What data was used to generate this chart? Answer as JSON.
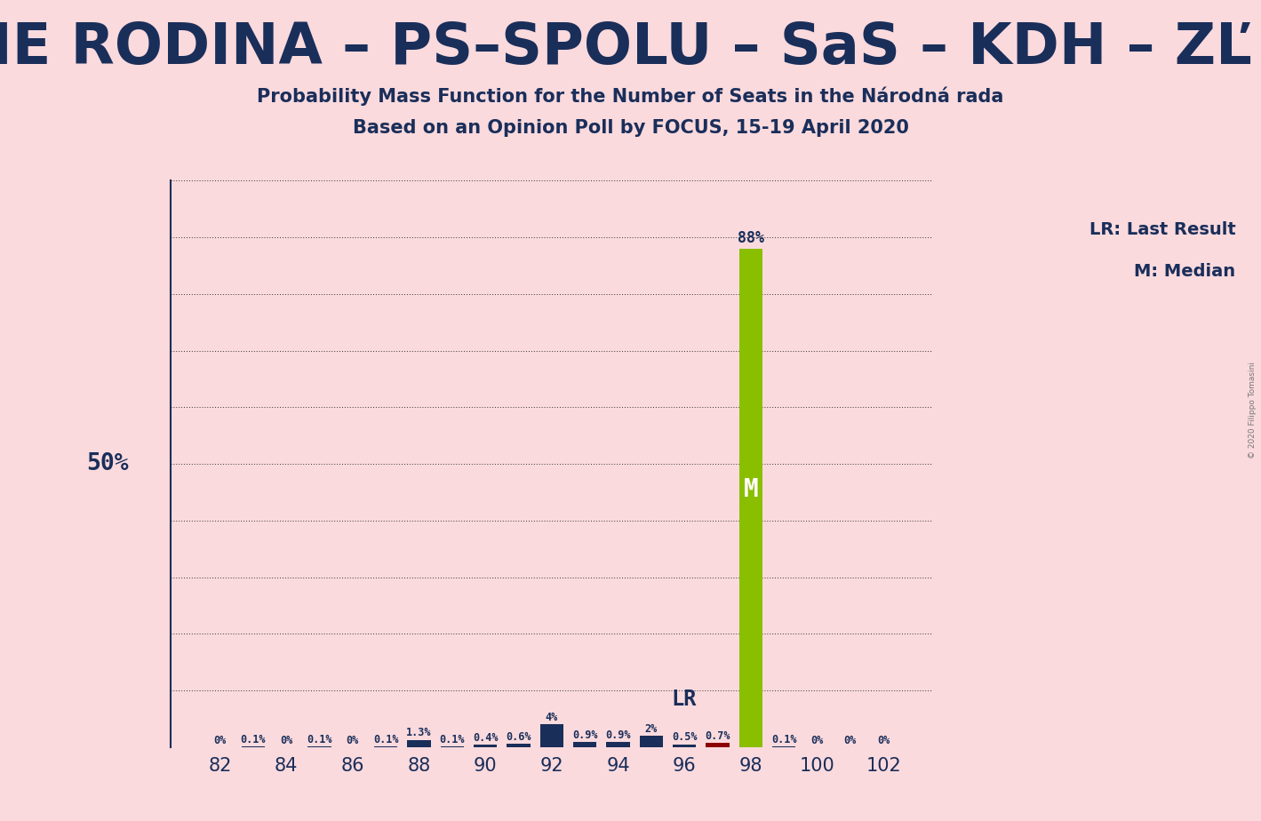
{
  "title1": "Probability Mass Function for the Number of Seats in the Národná rada",
  "title2": "Based on an Opinion Poll by FOCUS, 15-19 April 2020",
  "header": "OLaNO – SME RODINA – PS–SPOLU – SaS – KDH – ZĽ – SMK–MKP",
  "background_color": "#FADADD",
  "seats": [
    82,
    83,
    84,
    85,
    86,
    87,
    88,
    89,
    90,
    91,
    92,
    93,
    94,
    95,
    96,
    97,
    98,
    99,
    100,
    101,
    102
  ],
  "probabilities": [
    0.0,
    0.001,
    0.0,
    0.001,
    0.0,
    0.001,
    0.013,
    0.001,
    0.004,
    0.006,
    0.04,
    0.009,
    0.009,
    0.02,
    0.005,
    0.007,
    0.88,
    0.001,
    0.0,
    0.0,
    0.0
  ],
  "labels": [
    "0%",
    "0.1%",
    "0%",
    "0.1%",
    "0%",
    "0.1%",
    "1.3%",
    "0.1%",
    "0.4%",
    "0.6%",
    "4%",
    "0.9%",
    "0.9%",
    "2%",
    "0.5%",
    "0.7%",
    "",
    "0.1%",
    "0%",
    "0%",
    "0%"
  ],
  "bar_colors": [
    "#1a2e5a",
    "#1a2e5a",
    "#1a2e5a",
    "#1a2e5a",
    "#1a2e5a",
    "#1a2e5a",
    "#1a2e5a",
    "#1a2e5a",
    "#1a2e5a",
    "#1a2e5a",
    "#1a2e5a",
    "#1a2e5a",
    "#1a2e5a",
    "#1a2e5a",
    "#1a2e5a",
    "#8b0000",
    "#8abf00",
    "#1a2e5a",
    "#1a2e5a",
    "#1a2e5a",
    "#1a2e5a"
  ],
  "lr_seat": 96,
  "median_seat": 98,
  "legend_text1": "LR: Last Result",
  "legend_text2": "M: Median",
  "copyright": "© 2020 Filippo Tomasini",
  "big_bar_label": "88%",
  "big_bar_seat": 98,
  "grid_color": "#333333",
  "axis_color": "#1a2e5a",
  "bar_width": 0.7
}
